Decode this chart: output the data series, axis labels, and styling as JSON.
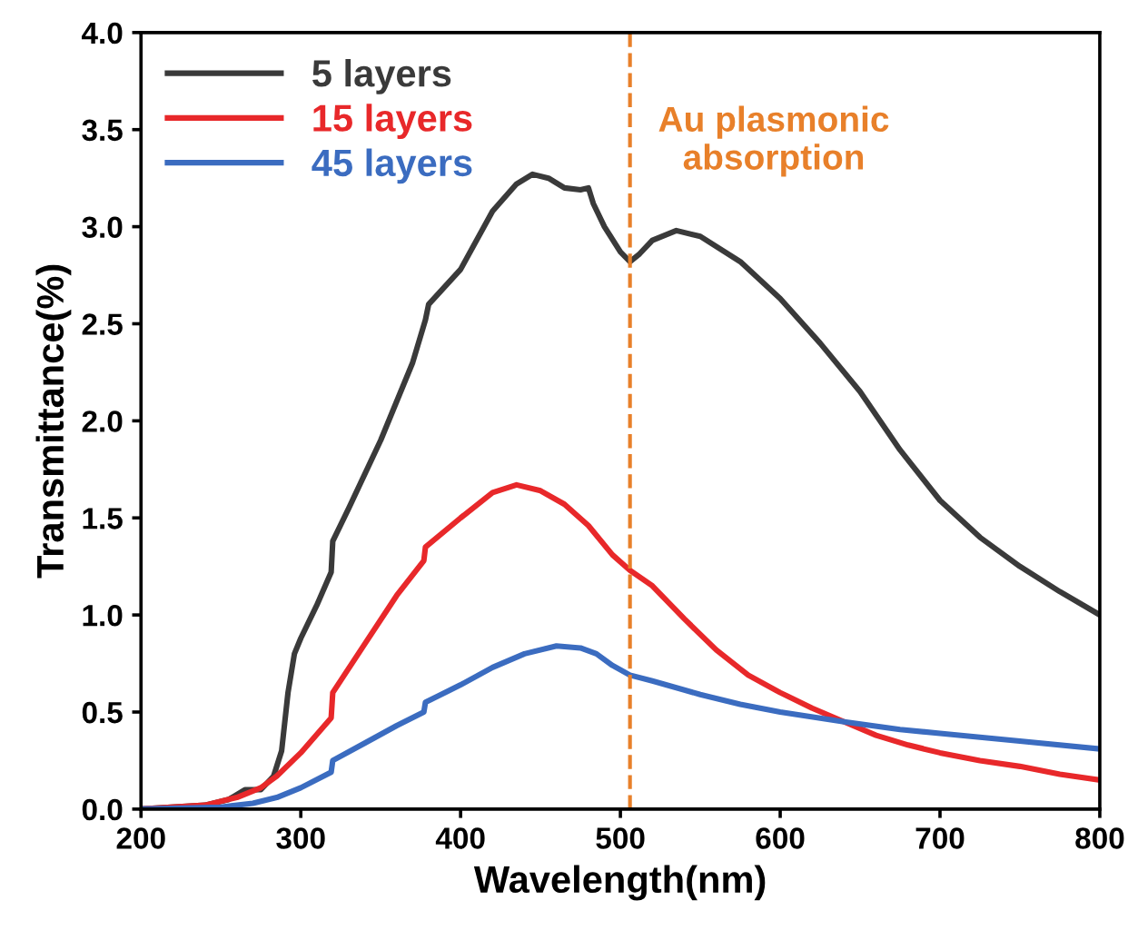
{
  "chart_data": {
    "type": "line",
    "xlabel": "Wavelength(nm)",
    "ylabel": "Transmittance(%)",
    "xlim": [
      200,
      800
    ],
    "ylim": [
      0,
      4.0
    ],
    "xticks": [
      200,
      300,
      400,
      500,
      600,
      700,
      800
    ],
    "yticks": [
      {
        "value": 0,
        "label": "0.0"
      },
      0.5,
      {
        "value": 1,
        "label": "1.0"
      },
      1.5,
      {
        "value": 2,
        "label": "2.0"
      },
      2.5,
      {
        "value": 3,
        "label": "3.0"
      },
      3.5,
      {
        "value": 4,
        "label": "4.0"
      }
    ],
    "grid": false,
    "legend": "top left",
    "marker": "none",
    "line_style": "solid",
    "ref_lines": [
      {
        "axis": "x",
        "value": 506,
        "color": "#e8802a",
        "line_style": "dashed"
      }
    ],
    "annotations": [
      "Au plasmonic\nabsorption"
    ],
    "series": [
      {
        "name": "5 layers",
        "color": "#3a3a3a",
        "x": [
          200,
          240,
          255,
          265,
          275,
          283,
          288,
          292,
          296,
          300,
          310,
          319,
          320,
          330,
          350,
          370,
          378,
          380,
          400,
          420,
          435,
          445,
          455,
          465,
          475,
          480,
          483,
          490,
          500,
          506,
          512,
          520,
          535,
          550,
          575,
          600,
          625,
          650,
          675,
          700,
          725,
          750,
          775,
          800
        ],
        "values": [
          0,
          0.02,
          0.05,
          0.1,
          0.1,
          0.17,
          0.3,
          0.6,
          0.8,
          0.88,
          1.05,
          1.22,
          1.38,
          1.55,
          1.9,
          2.3,
          2.52,
          2.6,
          2.78,
          3.08,
          3.22,
          3.27,
          3.25,
          3.2,
          3.19,
          3.2,
          3.12,
          3.0,
          2.87,
          2.82,
          2.86,
          2.93,
          2.98,
          2.95,
          2.82,
          2.63,
          2.4,
          2.15,
          1.85,
          1.59,
          1.4,
          1.25,
          1.12,
          1.0
        ]
      },
      {
        "name": "15 layers",
        "color": "#e8282a",
        "x": [
          200,
          240,
          260,
          275,
          285,
          300,
          319,
          320,
          340,
          360,
          377,
          378,
          400,
          420,
          435,
          450,
          465,
          480,
          495,
          506,
          520,
          540,
          560,
          580,
          600,
          620,
          640,
          660,
          680,
          700,
          725,
          750,
          775,
          800
        ],
        "values": [
          0,
          0.02,
          0.06,
          0.11,
          0.17,
          0.29,
          0.47,
          0.6,
          0.85,
          1.1,
          1.28,
          1.35,
          1.5,
          1.63,
          1.67,
          1.64,
          1.57,
          1.46,
          1.31,
          1.23,
          1.15,
          0.98,
          0.82,
          0.69,
          0.6,
          0.52,
          0.45,
          0.38,
          0.33,
          0.29,
          0.25,
          0.22,
          0.18,
          0.15
        ]
      },
      {
        "name": "45 layers",
        "color": "#3b6cc0",
        "x": [
          200,
          250,
          270,
          285,
          300,
          319,
          320,
          340,
          360,
          377,
          378,
          400,
          420,
          440,
          460,
          475,
          485,
          495,
          506,
          520,
          550,
          575,
          600,
          640,
          675,
          700,
          750,
          800
        ],
        "values": [
          0,
          0.01,
          0.03,
          0.06,
          0.11,
          0.19,
          0.25,
          0.34,
          0.43,
          0.5,
          0.55,
          0.64,
          0.73,
          0.8,
          0.84,
          0.83,
          0.8,
          0.74,
          0.69,
          0.66,
          0.59,
          0.54,
          0.5,
          0.45,
          0.41,
          0.39,
          0.35,
          0.31
        ]
      }
    ]
  }
}
